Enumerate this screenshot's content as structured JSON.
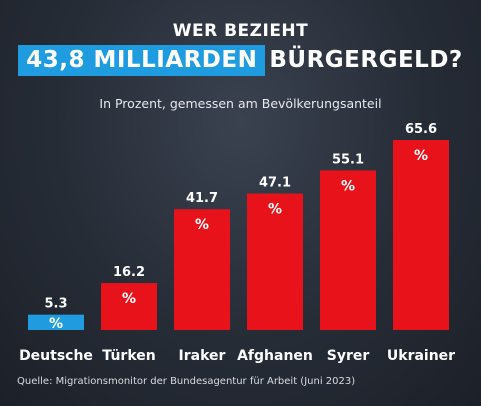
{
  "header": {
    "line1": "WER BEZIEHT",
    "highlight": "43,8 MILLIARDEN",
    "rest": "BÜRGERGELD?",
    "subtitle": "In Prozent, gemessen am Bevölkerungsanteil"
  },
  "source": "Quelle: Migrationsmonitor der Bundesagentur für Arbeit (Juni 2023)",
  "colors": {
    "highlight": "#1f9be0",
    "bar": "#e8121b"
  },
  "chart_data": {
    "type": "bar",
    "categories": [
      "Deutsche",
      "Türken",
      "Iraker",
      "Afghanen",
      "Syrer",
      "Ukrainer"
    ],
    "values": [
      5.3,
      16.2,
      41.7,
      47.1,
      55.1,
      65.6
    ],
    "value_labels": [
      "5.3",
      "16.2",
      "41.7",
      "47.1",
      "55.1",
      "65.6"
    ],
    "unit_label": "%",
    "bar_colors": [
      "#1f9be0",
      "#e8121b",
      "#e8121b",
      "#e8121b",
      "#e8121b",
      "#e8121b"
    ],
    "ylim": [
      0,
      65.6
    ],
    "grid": false
  }
}
